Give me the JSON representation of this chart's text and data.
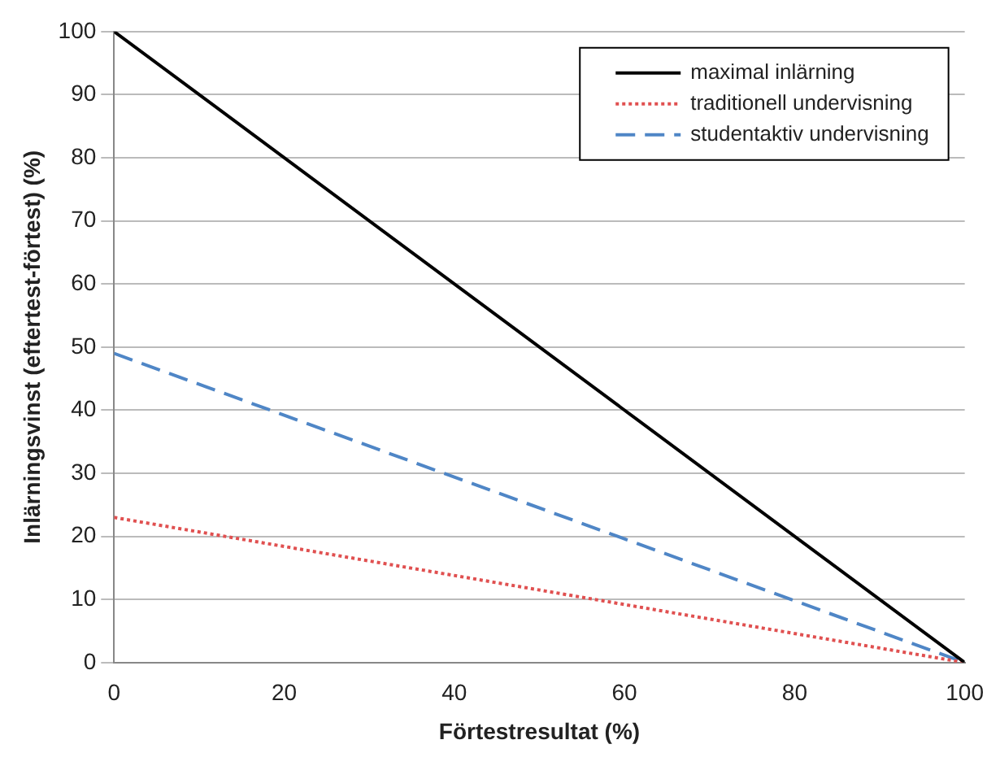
{
  "chart_data": {
    "type": "line",
    "xlabel": "Förtestresultat (%)",
    "ylabel": "Inlärningsvinst (eftertest-förtest) (%)",
    "x": [
      0,
      100
    ],
    "series": [
      {
        "name": "maximal inlärning",
        "color": "#000000",
        "line_style": "solid",
        "values": [
          100,
          0
        ]
      },
      {
        "name": "traditionell undervisning",
        "color": "#e05050",
        "line_style": "dotted",
        "values": [
          23,
          0
        ]
      },
      {
        "name": "studentaktiv undervisning",
        "color": "#4f86c6",
        "line_style": "dashed",
        "values": [
          49,
          0
        ]
      }
    ],
    "xlim": [
      0,
      100
    ],
    "xticks": [
      0,
      20,
      40,
      60,
      80,
      100
    ],
    "ylim": [
      0,
      100
    ],
    "yticks": [
      0,
      10,
      20,
      30,
      40,
      50,
      60,
      70,
      80,
      90,
      100
    ],
    "grid": "y",
    "legend": "top right",
    "marker": "none"
  }
}
